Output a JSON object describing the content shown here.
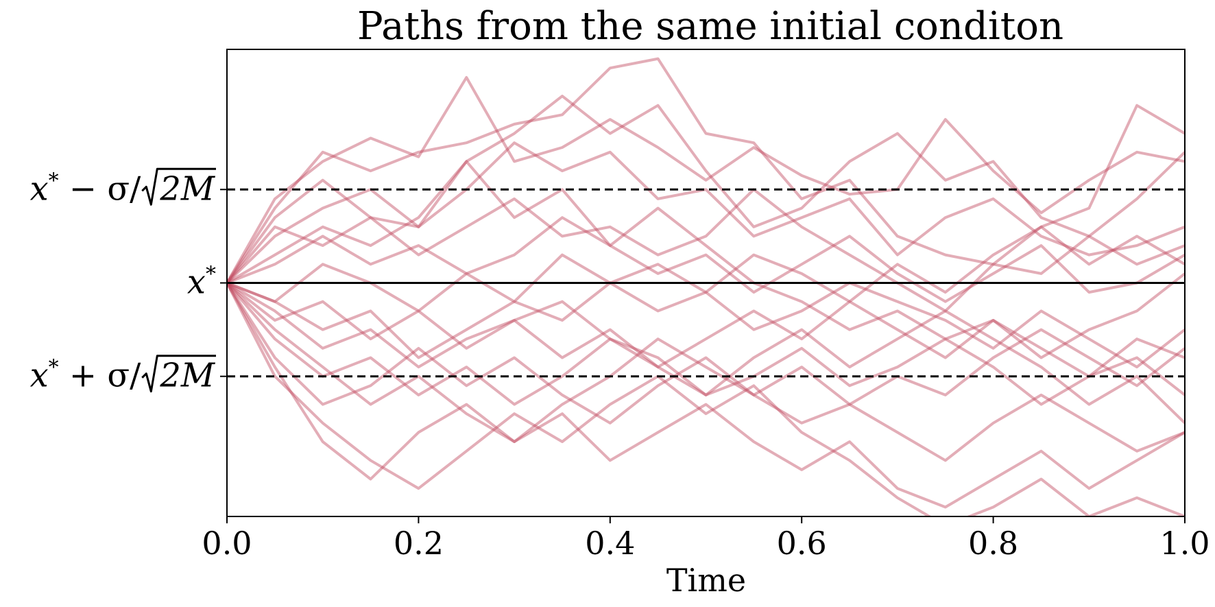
{
  "chart_data": {
    "type": "line",
    "title": "Paths from the same initial conditon",
    "xlabel": "Time",
    "ylabel": "",
    "xlim": [
      0.0,
      1.0
    ],
    "ylim": [
      -2.5,
      2.5
    ],
    "x_ticks": [
      "0.0",
      "0.2",
      "0.4",
      "0.6",
      "0.8",
      "1.0"
    ],
    "x_tick_values": [
      0.0,
      0.2,
      0.4,
      0.6,
      0.8,
      1.0
    ],
    "y_ticks": [
      {
        "value": 1.0,
        "base": "x",
        "sup": "*",
        "rest": " − σ/",
        "sqrt": "2M"
      },
      {
        "value": 0.0,
        "base": "x",
        "sup": "*",
        "rest": "",
        "sqrt": ""
      },
      {
        "value": -1.0,
        "base": "x",
        "sup": "*",
        "rest": " + σ/",
        "sqrt": "2M"
      }
    ],
    "reference_lines": [
      {
        "value": 0.0,
        "style": "solid",
        "color": "#000000"
      },
      {
        "value": 1.0,
        "style": "dashed",
        "color": "#000000"
      },
      {
        "value": -1.0,
        "style": "dashed",
        "color": "#000000"
      }
    ],
    "grid": false,
    "path_color": "#c24a60",
    "path_opacity": 0.45,
    "series": [
      {
        "x": [
          0,
          0.05,
          0.1,
          0.15,
          0.2,
          0.25,
          0.3,
          0.35,
          0.4,
          0.45,
          0.5,
          0.55,
          0.6,
          0.65,
          0.7,
          0.75,
          0.8,
          0.85,
          0.9,
          0.95,
          1.0
        ],
        "y": [
          0,
          0.9,
          1.3,
          1.55,
          1.35,
          2.2,
          1.3,
          1.45,
          1.75,
          1.45,
          1.1,
          1.45,
          1.15,
          0.95,
          1.0,
          1.75,
          1.2,
          0.75,
          1.1,
          1.4,
          1.3
        ]
      },
      {
        "x": [
          0,
          0.05,
          0.1,
          0.15,
          0.2,
          0.25,
          0.3,
          0.35,
          0.4,
          0.45,
          0.5,
          0.55,
          0.6,
          0.65,
          0.7,
          0.75,
          0.8,
          0.85,
          0.9,
          0.95,
          1.0
        ],
        "y": [
          0,
          0.8,
          1.4,
          1.2,
          1.4,
          1.5,
          1.7,
          1.8,
          2.3,
          2.4,
          1.6,
          1.5,
          0.9,
          1.1,
          0.5,
          0.3,
          0.2,
          0.6,
          0.8,
          1.9,
          1.6
        ]
      },
      {
        "x": [
          0,
          0.05,
          0.1,
          0.15,
          0.2,
          0.25,
          0.3,
          0.35,
          0.4,
          0.45,
          0.5,
          0.55,
          0.6,
          0.65,
          0.7,
          0.75,
          0.8,
          0.85,
          0.9,
          0.95,
          1.0
        ],
        "y": [
          0,
          0.7,
          1.1,
          0.7,
          0.6,
          1.3,
          1.6,
          2.0,
          1.6,
          1.9,
          1.2,
          0.6,
          0.8,
          1.3,
          1.6,
          1.1,
          1.3,
          0.7,
          0.5,
          0.9,
          1.4
        ]
      },
      {
        "x": [
          0,
          0.05,
          0.1,
          0.15,
          0.2,
          0.25,
          0.3,
          0.35,
          0.4,
          0.45,
          0.5,
          0.55,
          0.6,
          0.65,
          0.7,
          0.75,
          0.8,
          0.85,
          0.9,
          0.95,
          1.0
        ],
        "y": [
          0,
          0.5,
          0.8,
          1.0,
          0.6,
          1.0,
          1.5,
          1.2,
          1.4,
          0.9,
          1.0,
          0.5,
          0.7,
          0.9,
          0.3,
          0.7,
          0.9,
          0.5,
          0.3,
          0.4,
          0.6
        ]
      },
      {
        "x": [
          0,
          0.05,
          0.1,
          0.15,
          0.2,
          0.25,
          0.3,
          0.35,
          0.4,
          0.45,
          0.5,
          0.55,
          0.6,
          0.65,
          0.7,
          0.75,
          0.8,
          0.85,
          0.9,
          0.95,
          1.0
        ],
        "y": [
          0,
          0.6,
          0.4,
          0.7,
          0.3,
          0.6,
          0.9,
          0.5,
          0.6,
          0.3,
          0.5,
          1.0,
          0.6,
          0.3,
          0.0,
          -0.3,
          0.2,
          0.1,
          0.5,
          0.2,
          0.4
        ]
      },
      {
        "x": [
          0,
          0.05,
          0.1,
          0.15,
          0.2,
          0.25,
          0.3,
          0.35,
          0.4,
          0.45,
          0.5,
          0.55,
          0.6,
          0.65,
          0.7,
          0.75,
          0.8,
          0.85,
          0.9,
          0.95,
          1.0
        ],
        "y": [
          0,
          0.3,
          0.6,
          0.4,
          0.7,
          1.3,
          0.7,
          1.0,
          0.4,
          0.1,
          0.3,
          -0.1,
          0.2,
          0.5,
          0.1,
          -0.2,
          0.1,
          0.4,
          -0.1,
          0.0,
          0.3
        ]
      },
      {
        "x": [
          0,
          0.05,
          0.1,
          0.15,
          0.2,
          0.25,
          0.3,
          0.35,
          0.4,
          0.45,
          0.5,
          0.55,
          0.6,
          0.65,
          0.7,
          0.75,
          0.8,
          0.85,
          0.9,
          0.95,
          1.0
        ],
        "y": [
          0,
          0.2,
          0.5,
          0.2,
          0.4,
          0.1,
          0.3,
          0.7,
          0.4,
          0.8,
          0.4,
          0.0,
          -0.2,
          -0.5,
          -0.3,
          -0.6,
          -0.4,
          -0.8,
          -0.5,
          -0.3,
          0.1
        ]
      },
      {
        "x": [
          0,
          0.05,
          0.1,
          0.15,
          0.2,
          0.25,
          0.3,
          0.35,
          0.4,
          0.45,
          0.5,
          0.55,
          0.6,
          0.65,
          0.7,
          0.75,
          0.8,
          0.85,
          0.9,
          0.95,
          1.0
        ],
        "y": [
          0,
          -0.2,
          0.2,
          0.0,
          -0.3,
          0.1,
          -0.2,
          0.3,
          0.0,
          -0.3,
          -0.1,
          -0.5,
          -0.3,
          0.0,
          -0.2,
          -0.4,
          -0.7,
          -0.3,
          -0.6,
          -0.9,
          -0.5
        ]
      },
      {
        "x": [
          0,
          0.05,
          0.1,
          0.15,
          0.2,
          0.25,
          0.3,
          0.35,
          0.4,
          0.45,
          0.5,
          0.55,
          0.6,
          0.65,
          0.7,
          0.75,
          0.8,
          0.85,
          0.9,
          0.95,
          1.0
        ],
        "y": [
          0,
          -0.4,
          -0.2,
          -0.6,
          -0.3,
          -0.7,
          -0.4,
          -0.8,
          -0.5,
          -0.9,
          -0.6,
          -0.3,
          -0.6,
          -0.2,
          -0.5,
          -0.8,
          -0.4,
          -0.7,
          -1.0,
          -0.6,
          -0.8
        ]
      },
      {
        "x": [
          0,
          0.05,
          0.1,
          0.15,
          0.2,
          0.25,
          0.3,
          0.35,
          0.4,
          0.45,
          0.5,
          0.55,
          0.6,
          0.65,
          0.7,
          0.75,
          0.8,
          0.85,
          0.9,
          0.95,
          1.0
        ],
        "y": [
          0,
          -0.3,
          -0.7,
          -0.5,
          -0.9,
          -0.6,
          -0.4,
          -0.2,
          -0.6,
          -0.8,
          -1.2,
          -1.0,
          -0.7,
          -1.1,
          -0.9,
          -0.6,
          -0.9,
          -1.3,
          -1.0,
          -0.8,
          -1.2
        ]
      },
      {
        "x": [
          0,
          0.05,
          0.1,
          0.15,
          0.2,
          0.25,
          0.3,
          0.35,
          0.4,
          0.45,
          0.5,
          0.55,
          0.6,
          0.65,
          0.7,
          0.75,
          0.8,
          0.85,
          0.9,
          0.95,
          1.0
        ],
        "y": [
          0,
          -0.6,
          -1.0,
          -0.8,
          -1.2,
          -0.9,
          -1.3,
          -1.0,
          -0.6,
          -0.9,
          -1.2,
          -0.8,
          -0.5,
          -0.9,
          -0.6,
          -0.3,
          -0.6,
          -0.9,
          -1.3,
          -1.0,
          -1.5
        ]
      },
      {
        "x": [
          0,
          0.05,
          0.1,
          0.15,
          0.2,
          0.25,
          0.3,
          0.35,
          0.4,
          0.45,
          0.5,
          0.55,
          0.6,
          0.65,
          0.7,
          0.75,
          0.8,
          0.85,
          0.9,
          0.95,
          1.0
        ],
        "y": [
          0,
          -0.8,
          -1.3,
          -1.1,
          -0.7,
          -1.1,
          -0.8,
          -1.2,
          -1.5,
          -1.1,
          -0.8,
          -1.2,
          -1.5,
          -1.3,
          -1.6,
          -1.9,
          -1.5,
          -1.2,
          -1.5,
          -1.8,
          -1.6
        ]
      },
      {
        "x": [
          0,
          0.05,
          0.1,
          0.15,
          0.2,
          0.25,
          0.3,
          0.35,
          0.4,
          0.45,
          0.5,
          0.55,
          0.6,
          0.65,
          0.7,
          0.75,
          0.8,
          0.85,
          0.9,
          0.95,
          1.0
        ],
        "y": [
          0,
          -0.9,
          -1.7,
          -2.1,
          -1.6,
          -1.3,
          -1.7,
          -1.4,
          -1.9,
          -1.6,
          -1.3,
          -1.7,
          -2.0,
          -1.7,
          -2.2,
          -2.4,
          -2.1,
          -1.8,
          -2.2,
          -1.9,
          -1.6
        ]
      },
      {
        "x": [
          0,
          0.05,
          0.1,
          0.15,
          0.2,
          0.25,
          0.3,
          0.35,
          0.4,
          0.45,
          0.5,
          0.55,
          0.6,
          0.65,
          0.7,
          0.75,
          0.8,
          0.85,
          0.9,
          0.95,
          1.0
        ],
        "y": [
          0,
          -1.0,
          -1.5,
          -1.9,
          -2.2,
          -1.8,
          -1.4,
          -1.7,
          -1.3,
          -1.0,
          -1.4,
          -1.1,
          -1.6,
          -1.9,
          -2.3,
          -2.6,
          -2.4,
          -2.1,
          -2.5,
          -2.3,
          -2.5
        ]
      },
      {
        "x": [
          0,
          0.05,
          0.1,
          0.15,
          0.2,
          0.25,
          0.3,
          0.35,
          0.4,
          0.45,
          0.5,
          0.55,
          0.6,
          0.65,
          0.7,
          0.75,
          0.8,
          0.85,
          0.9,
          0.95,
          1.0
        ],
        "y": [
          0,
          -0.5,
          -0.9,
          -1.3,
          -1.0,
          -1.4,
          -1.7,
          -1.3,
          -1.0,
          -0.6,
          -0.9,
          -1.2,
          -0.9,
          -1.3,
          -1.0,
          -1.2,
          -0.8,
          -0.5,
          -0.8,
          -1.1,
          -0.7
        ]
      },
      {
        "x": [
          0,
          0.05,
          0.1,
          0.15,
          0.2,
          0.25,
          0.3,
          0.35,
          0.4,
          0.45,
          0.5,
          0.55,
          0.6,
          0.65,
          0.7,
          0.75,
          0.8,
          0.85,
          0.9,
          0.95,
          1.0
        ],
        "y": [
          0,
          -0.2,
          -0.5,
          -0.3,
          -0.8,
          -0.5,
          -0.2,
          -0.4,
          0.0,
          0.2,
          -0.1,
          0.3,
          0.1,
          -0.2,
          0.2,
          -0.1,
          0.3,
          0.6,
          0.2,
          0.5,
          0.2
        ]
      }
    ]
  }
}
